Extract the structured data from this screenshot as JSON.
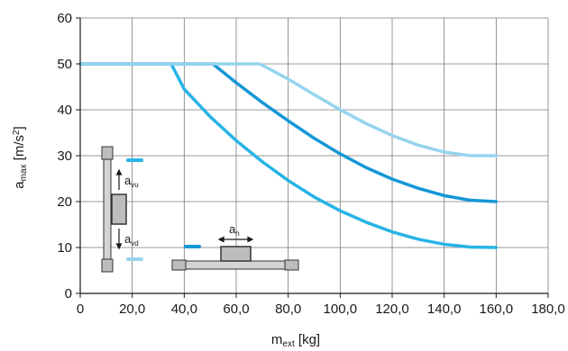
{
  "chart_data": {
    "type": "line",
    "xlabel": {
      "main": "m",
      "sub": "ext",
      "unit": " [kg]"
    },
    "ylabel": {
      "main": "a",
      "sub": "max",
      "unit_pre": " [m/s",
      "unit_sup": "2",
      "unit_post": "]"
    },
    "xlim": [
      0,
      180
    ],
    "ylim": [
      0,
      60
    ],
    "x_ticks": [
      "0",
      "20,0",
      "40,0",
      "60,0",
      "80,0",
      "100,0",
      "120,0",
      "140,0",
      "160,0",
      "180,0"
    ],
    "y_ticks": [
      "0",
      "10",
      "20",
      "30",
      "40",
      "50",
      "60"
    ],
    "grid": true,
    "series": [
      {
        "color": "#27b4e6",
        "x": [
          0,
          35,
          40,
          50,
          60,
          70,
          80,
          90,
          100,
          110,
          120,
          130,
          140,
          150,
          160
        ],
        "y": [
          50,
          50,
          44.5,
          38.5,
          33.3,
          28.7,
          24.6,
          21.0,
          18.0,
          15.5,
          13.4,
          11.8,
          10.7,
          10.1,
          10
        ]
      },
      {
        "color": "#1597d6",
        "x": [
          0,
          51,
          60,
          70,
          80,
          90,
          100,
          110,
          120,
          130,
          140,
          150,
          160
        ],
        "y": [
          50,
          50,
          45.9,
          41.6,
          37.6,
          33.8,
          30.4,
          27.4,
          24.9,
          22.9,
          21.3,
          20.3,
          20
        ]
      },
      {
        "color": "#96d4ee",
        "x": [
          0,
          69,
          80,
          90,
          100,
          110,
          120,
          130,
          140,
          150,
          160
        ],
        "y": [
          50,
          50,
          46.7,
          43.3,
          40.0,
          37.0,
          34.4,
          32.3,
          30.8,
          30.0,
          30
        ]
      }
    ],
    "inset_labels": {
      "vertical_up": {
        "main": "a",
        "sub": "vu"
      },
      "vertical_down": {
        "main": "a",
        "sub": "vd"
      },
      "horizontal": {
        "main": "a",
        "sub": "h"
      }
    },
    "inset_colors": {
      "up": "#27b4e6",
      "down": "#96d4ee",
      "horizontal": "#1597d6",
      "box_fill": "#bdbdbd",
      "box_stroke": "#333333"
    }
  }
}
